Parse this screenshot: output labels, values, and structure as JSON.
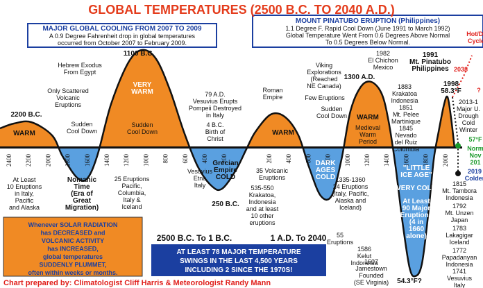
{
  "title": "GLOBAL TEMPERATURES (2500 B.C. TO 2040 A.D.)",
  "boxes": {
    "cooling": {
      "heading": "MAJOR GLOBAL COOLING FROM 2007 TO 2009",
      "lines": [
        "A 0.9 Degree Fahrenheit drop in global temperatures",
        "occurred from October 2007 to February 2009."
      ]
    },
    "pinatubo": {
      "heading": "MOUNT PINATUBO ERUPTION (Philippines)",
      "lines": [
        "1.1 Degree F. Rapid Cool Down (June 1991 to March 1992)",
        "Global Temperature Went From 0.6 Degrees Above Normal",
        "To 0.5 Degrees Below Normal."
      ]
    },
    "solar": {
      "lines": [
        "Whenever SOLAR RADIATION",
        "has DECREASED and",
        "VOLCANIC ACTIVITY",
        "has INCREASED,",
        "global temperatures",
        "SUDDENLY PLUMMET,",
        "often within weeks or months."
      ]
    },
    "swings": {
      "lines": [
        "AT LEAST 78 MAJOR TEMPERATURE",
        "SWINGS IN THE LAST 4,500 YEARS",
        "INCLUDING 2 SINCE THE 1970S!"
      ]
    }
  },
  "eras": [
    "2500 B.C. To 1 B.C.",
    "1 A.D. To 2040"
  ],
  "axis_bc": [
    "2400",
    "2200",
    "2000",
    "1800",
    "1600",
    "1400",
    "1200",
    "1000",
    "800",
    "600",
    "400",
    "200"
  ],
  "axis_ad": [
    "200",
    "400",
    "600",
    "800",
    "1000",
    "1200",
    "1400",
    "1600",
    "1800",
    "2000"
  ],
  "labels": [
    {
      "lines": [
        "2200 B.C."
      ]
    },
    {
      "lines": [
        "WARM"
      ]
    },
    {
      "lines": [
        "Hebrew Exodus",
        "From Egypt"
      ]
    },
    {
      "lines": [
        "1100 B.C."
      ]
    },
    {
      "lines": [
        "Only Scattered",
        "Volcanic",
        "Eruptions"
      ]
    },
    {
      "lines": [
        "Sudden",
        "Cool Down"
      ]
    },
    {
      "lines": [
        "VERY",
        "WARM"
      ]
    },
    {
      "lines": [
        "Sudden",
        "Cool Down"
      ]
    },
    {
      "lines": [
        "79 A.D.",
        "Vesuvius Erupts",
        "Pompeii Destroyed",
        "in Italy"
      ]
    },
    {
      "lines": [
        "4 B.C.",
        "Birth of",
        "Christ"
      ]
    },
    {
      "lines": [
        "Grecian",
        "Empire",
        "COLD"
      ]
    },
    {
      "lines": [
        "At Least",
        "10 Eruptions",
        "in Italy,",
        "Pacific",
        "and Alaska"
      ]
    },
    {
      "lines": [
        "Nomanic",
        "Time",
        "(Era of",
        "Great",
        "Migration)"
      ]
    },
    {
      "lines": [
        "25 Eruptions",
        "Pacific,",
        "Columbia,",
        "Italy &",
        "Iceland"
      ]
    },
    {
      "lines": [
        "Vesuvius",
        "Etna",
        "Italy"
      ]
    },
    {
      "lines": [
        "250 B.C."
      ]
    },
    {
      "lines": [
        "Roman",
        "Empire"
      ]
    },
    {
      "lines": [
        "WARM"
      ]
    },
    {
      "lines": [
        "35 Volcanic",
        "Eruptions"
      ]
    },
    {
      "lines": [
        "DARK",
        "AGES",
        "COLD"
      ]
    },
    {
      "lines": [
        "535-550",
        "Krakatoa,",
        "Indonesia",
        "and at least",
        "10 other",
        "eruptions"
      ]
    },
    {
      "lines": [
        "55",
        "Eruptions"
      ]
    },
    {
      "lines": [
        "Viking",
        "Explorations",
        "(Reached",
        "NE Canada)"
      ]
    },
    {
      "lines": [
        "Few Eruptions"
      ]
    },
    {
      "lines": [
        "Sudden",
        "Cool Down"
      ]
    },
    {
      "lines": [
        "1300 A.D."
      ]
    },
    {
      "lines": [
        "WARM"
      ]
    },
    {
      "lines": [
        "Medieval",
        "Warm",
        "Period"
      ]
    },
    {
      "lines": [
        "1335-1360",
        "24 Eruptions",
        "(Italy, Pacific,",
        "Alaska and",
        "Iceland)"
      ]
    },
    {
      "lines": [
        "1982",
        "El Chichon",
        "Mexico"
      ]
    },
    {
      "lines": [
        "1883",
        "Krakatoa",
        "Indonesia"
      ]
    },
    {
      "lines": [
        "1851",
        "Mt. Pelee",
        "Martinique",
        "1845",
        "Nevado",
        "del Ruiz",
        "Columbia"
      ]
    },
    {
      "lines": [
        "\"LITTLE",
        "ICE AGE\""
      ]
    },
    {
      "lines": [
        "VERY COLD"
      ]
    },
    {
      "lines": [
        "At Least",
        "90 Major",
        "Eruptions",
        "(4 in",
        "1660",
        "alone)"
      ]
    },
    {
      "lines": [
        "1586",
        "Kelut",
        "Indonesia"
      ]
    },
    {
      "lines": [
        "1607",
        "Jamestown",
        "Founded",
        "(SE Virginia)"
      ]
    },
    {
      "lines": [
        "54.3°F?"
      ]
    },
    {
      "lines": [
        "1991",
        "Mt. Pinatubo",
        "Philippines"
      ]
    },
    {
      "lines": [
        "1998",
        "58.3°F"
      ]
    },
    {
      "lines": [
        "2013-1",
        "Major U.",
        "Drough",
        "Cold",
        "Winter"
      ]
    },
    {
      "lines": [
        "Hot/Dr",
        "Cycle"
      ]
    },
    {
      "lines": [
        "2038"
      ]
    },
    {
      "lines": [
        "?"
      ]
    },
    {
      "lines": [
        "57°F"
      ]
    },
    {
      "lines": [
        "Norm",
        "Nov",
        "201"
      ]
    },
    {
      "lines": [
        "2019",
        "Colder"
      ]
    },
    {
      "lines": [
        "1815",
        "Mt. Tambora",
        "Indonesia"
      ]
    },
    {
      "lines": [
        "1792",
        "Mt. Unzen",
        "Japan"
      ]
    },
    {
      "lines": [
        "1783",
        "Lakagigar",
        "Iceland"
      ]
    },
    {
      "lines": [
        "1772",
        "Papadanyan",
        "Indonesia",
        "1741",
        "Vesuvius",
        "Italy"
      ]
    }
  ],
  "credit": "Chart prepared by: Climatologist Cliff Harris & Meteorologist Randy Mann"
}
